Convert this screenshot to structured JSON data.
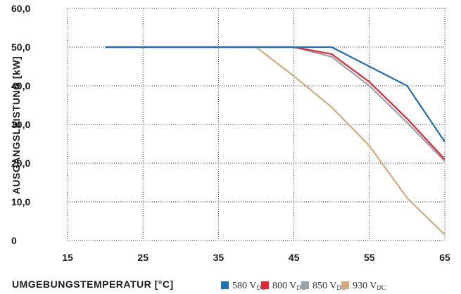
{
  "chart_data": {
    "type": "line",
    "title": "",
    "xlabel": "UMGEBUNGSTEMPERATUR [°C]",
    "ylabel": "AUSGANGSLEISTUNG [kW]",
    "xlim": [
      15,
      65
    ],
    "ylim": [
      0,
      60
    ],
    "xticks": [
      15,
      25,
      35,
      45,
      55,
      65
    ],
    "xtick_labels": [
      "15",
      "25",
      "35",
      "45",
      "55",
      "65"
    ],
    "yticks": [
      0,
      10,
      20,
      30,
      40,
      50,
      60
    ],
    "ytick_labels": [
      "0",
      "10,0",
      "20,0",
      "30,0",
      "40,0",
      "50,0",
      "60,0"
    ],
    "grid": true,
    "legend_position": "bottom-right",
    "series": [
      {
        "name": "580",
        "name_sub": "DC",
        "color": "#1f6fb2",
        "x": [
          20,
          50,
          60,
          65
        ],
        "y": [
          50,
          50,
          40,
          25.5
        ]
      },
      {
        "name": "800",
        "name_sub": "DC",
        "color": "#e3262f",
        "x": [
          20,
          45,
          50,
          55,
          60,
          65
        ],
        "y": [
          50,
          50,
          48.2,
          41,
          31.5,
          21
        ]
      },
      {
        "name": "850",
        "name_sub": "DC",
        "color": "#9aa3ad",
        "x": [
          20,
          45,
          50,
          55,
          60,
          65
        ],
        "y": [
          50,
          50,
          47.5,
          40,
          30.5,
          20.5
        ]
      },
      {
        "name": "930",
        "name_sub": "DC",
        "color": "#d4aa7d",
        "x": [
          20,
          40,
          45,
          50,
          55,
          60,
          65
        ],
        "y": [
          50,
          50,
          42.5,
          34.5,
          24.5,
          11,
          1.5
        ]
      }
    ],
    "legend_unit": "V"
  }
}
